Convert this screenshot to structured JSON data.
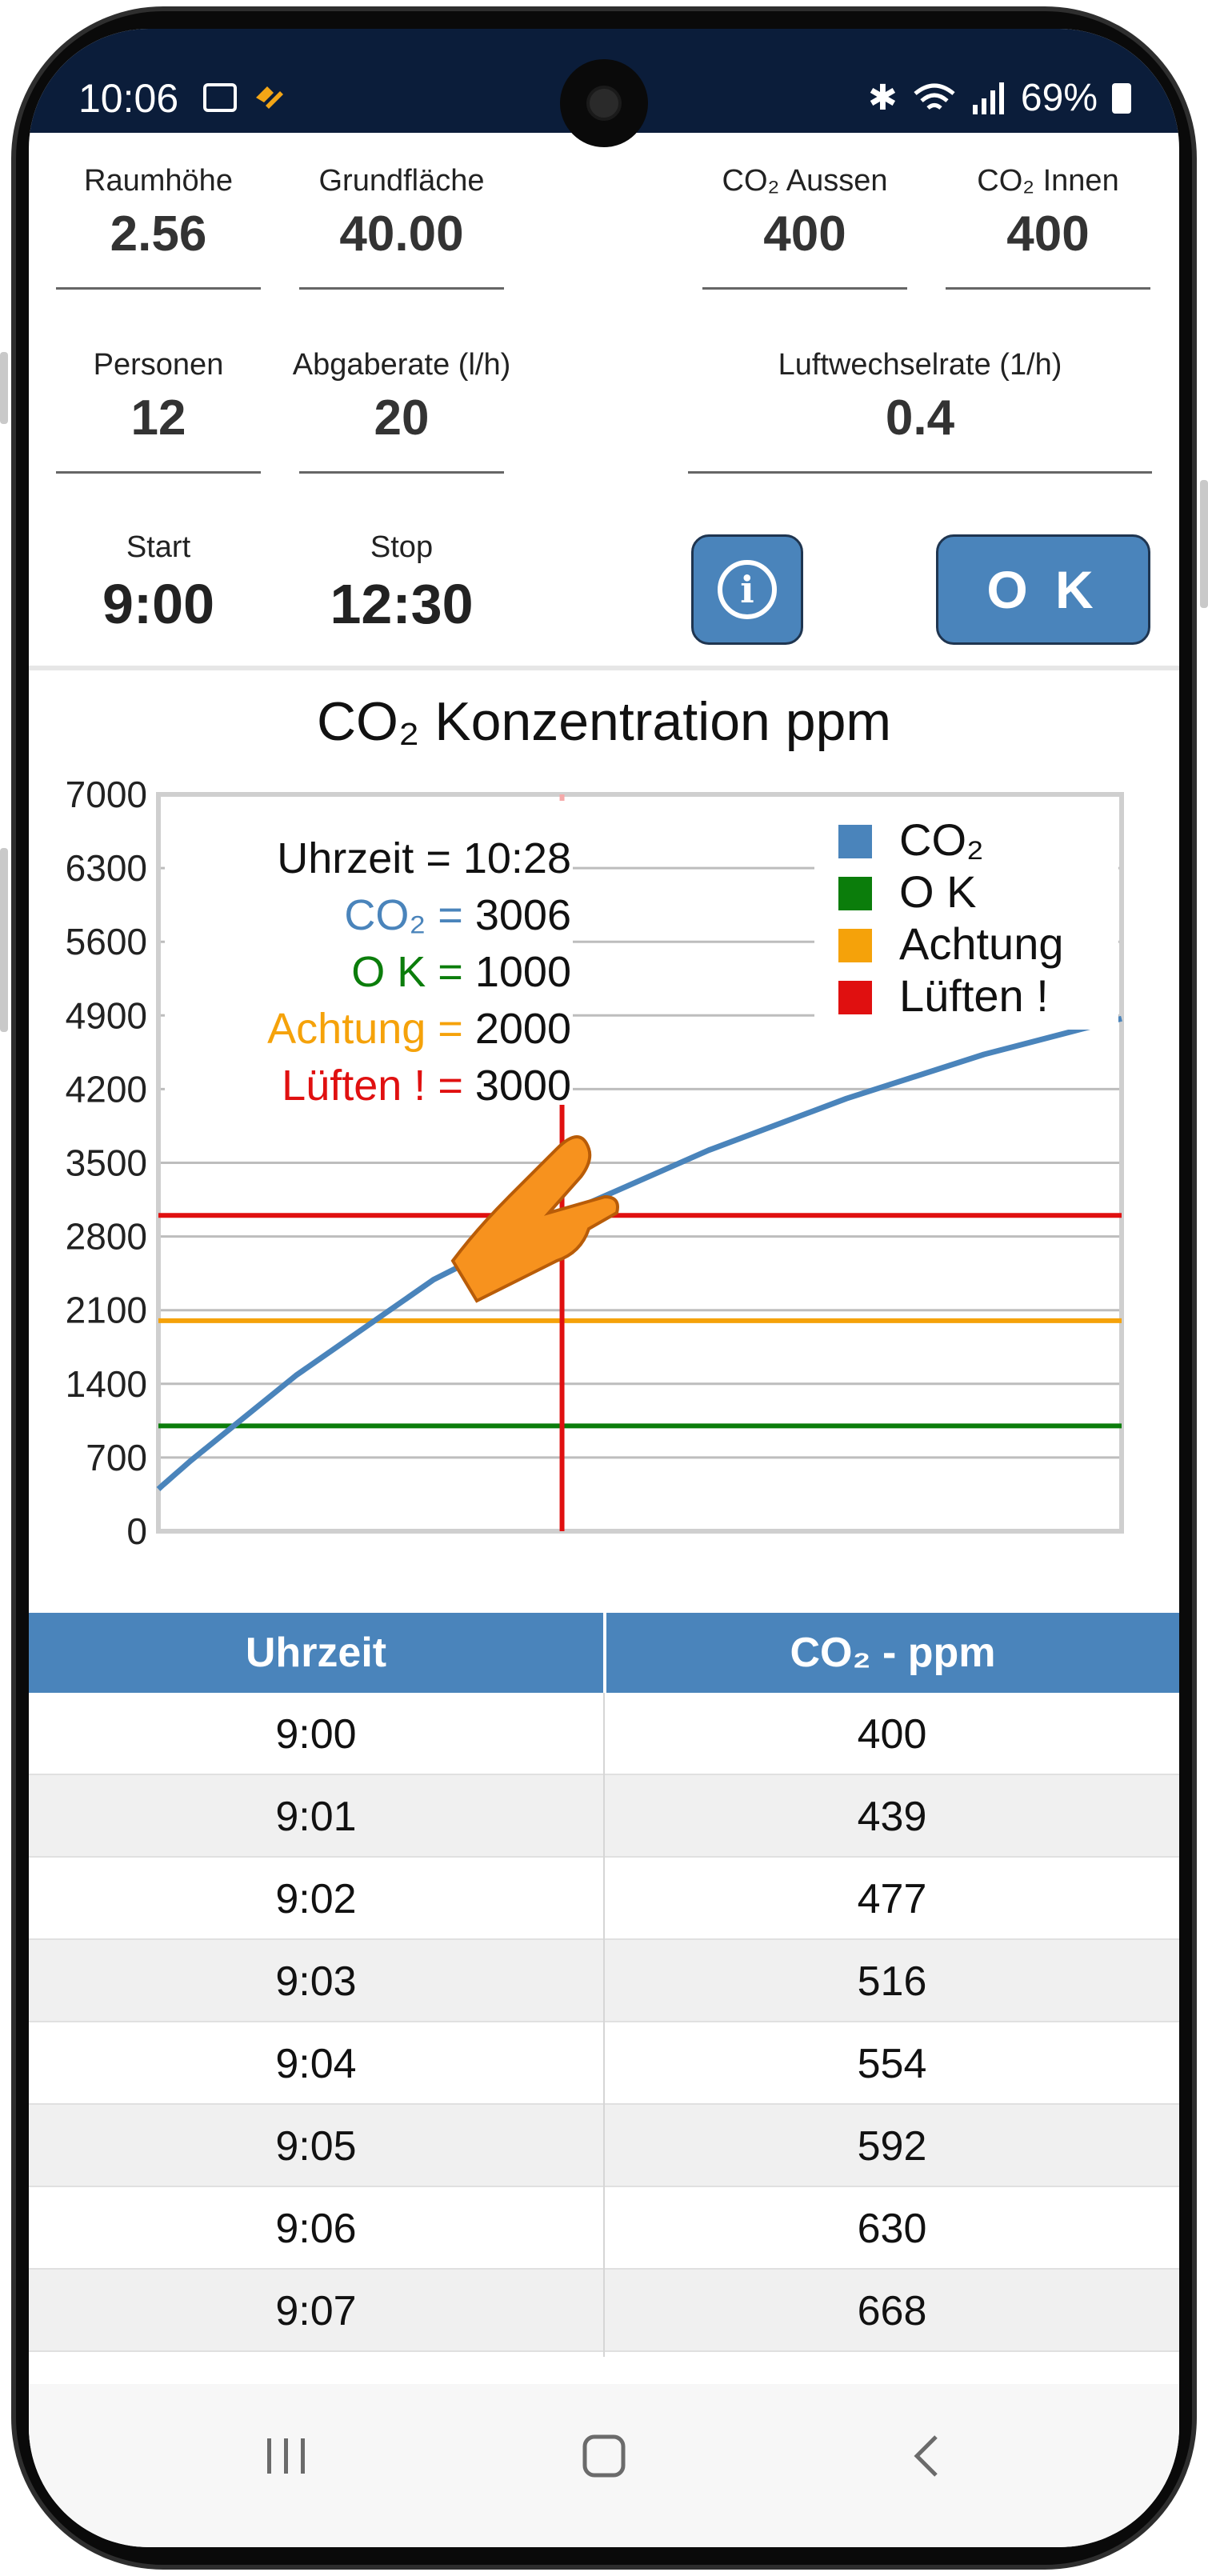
{
  "status_bar": {
    "time": "10:06",
    "battery": "69%"
  },
  "inputs": {
    "raumhoehe": {
      "label": "Raumhöhe",
      "value": "2.56"
    },
    "grundflaeche": {
      "label": "Grundfläche",
      "value": "40.00"
    },
    "co2_aussen": {
      "label": "CO₂ Aussen",
      "value": "400"
    },
    "co2_innen": {
      "label": "CO₂ Innen",
      "value": "400"
    },
    "personen": {
      "label": "Personen",
      "value": "12"
    },
    "abgaberate": {
      "label": "Abgaberate (l/h)",
      "value": "20"
    },
    "luftwechselrate": {
      "label": "Luftwechselrate (1/h)",
      "value": "0.4"
    },
    "start": {
      "label": "Start",
      "value": "9:00"
    },
    "stop": {
      "label": "Stop",
      "value": "12:30"
    }
  },
  "buttons": {
    "info_icon": "info-icon",
    "ok_label": "O K"
  },
  "colors": {
    "accent": "#4a84bb",
    "co2": "#4a84bb",
    "ok": "#0b7d0b",
    "achtung": "#f5a20a",
    "lueften": "#e01010",
    "statusbar": "#0b1d3a"
  },
  "chart_data": {
    "type": "line",
    "title": "CO₂ Konzentration ppm",
    "ylim": [
      0,
      7000
    ],
    "xlim": [
      "9:00",
      "12:30"
    ],
    "y_ticks": [
      0,
      700,
      1400,
      2100,
      2800,
      3500,
      4200,
      4900,
      5600,
      6300,
      7000
    ],
    "grid": true,
    "legend_position": "top-right",
    "legend": [
      "CO₂",
      "O K",
      "Achtung",
      "Lüften !"
    ],
    "series": [
      {
        "name": "CO₂",
        "x_minutes": [
          0,
          1,
          2,
          3,
          4,
          5,
          6,
          7,
          30,
          60,
          88,
          120,
          150,
          180,
          210
        ],
        "values": [
          400,
          439,
          477,
          516,
          554,
          592,
          630,
          668,
          1480,
          2390,
          3006,
          3620,
          4110,
          4530,
          4870
        ]
      },
      {
        "name": "O K",
        "values": [
          1000,
          1000
        ]
      },
      {
        "name": "Achtung",
        "values": [
          2000,
          2000
        ]
      },
      {
        "name": "Lüften !",
        "values": [
          3000,
          3000
        ]
      }
    ],
    "cursor": {
      "uhrzeit_label": "Uhrzeit = ",
      "uhrzeit": "10:28",
      "co2_label": "CO₂ = ",
      "co2": "3006",
      "ok_label": "O K = ",
      "ok": "1000",
      "achtung_label": "Achtung = ",
      "achtung": "2000",
      "lueften_label": "Lüften ! = ",
      "lueften": "3000"
    }
  },
  "table": {
    "headers": [
      "Uhrzeit",
      "CO₂ - ppm"
    ],
    "rows": [
      [
        "9:00",
        "400"
      ],
      [
        "9:01",
        "439"
      ],
      [
        "9:02",
        "477"
      ],
      [
        "9:03",
        "516"
      ],
      [
        "9:04",
        "554"
      ],
      [
        "9:05",
        "592"
      ],
      [
        "9:06",
        "630"
      ],
      [
        "9:07",
        "668"
      ]
    ]
  },
  "nav": {
    "recents_icon": "recent-apps-icon",
    "home_icon": "home-icon",
    "back_icon": "back-icon"
  }
}
